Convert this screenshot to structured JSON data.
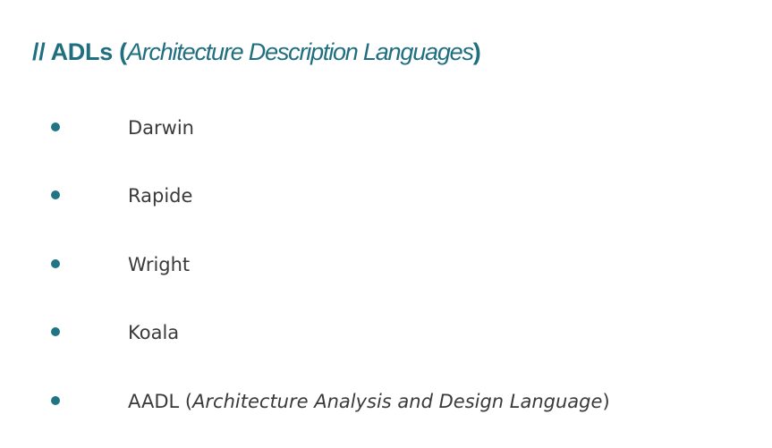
{
  "title": {
    "prefix": "// ADLs (",
    "italic": "Architecture Description Languages",
    "suffix": ")"
  },
  "items": [
    {
      "text": "Darwin"
    },
    {
      "text": "Rapide"
    },
    {
      "text": "Wright"
    },
    {
      "text": "Koala"
    },
    {
      "text": "AADL (",
      "italic": "Architecture Analysis and Design Language",
      "suffix": ")"
    }
  ],
  "colors": {
    "accent": "#1f6f80",
    "bullet": "#1f7585",
    "body_text": "#3a3a3a",
    "background": "#ffffff"
  },
  "icons": {
    "bullet": "bullet-dot-icon"
  }
}
